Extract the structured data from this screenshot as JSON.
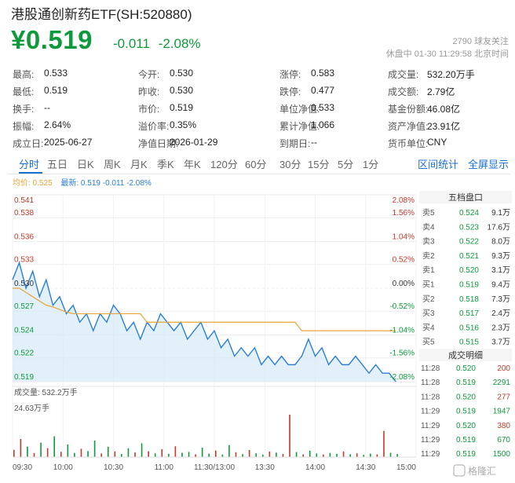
{
  "header": {
    "title": "港股通创新药ETF(SH:520880)",
    "price": "¥0.519",
    "change": "-0.011",
    "change_pct": "-2.08%",
    "followers": "2790 球友关注",
    "status": "休盘中 01-30 11:29:58 北京时间"
  },
  "stats": [
    {
      "label": "最高:",
      "value": "0.533",
      "color": "red"
    },
    {
      "label": "今开:",
      "value": "0.530",
      "color": "dark"
    },
    {
      "label": "涨停:",
      "value": "0.583",
      "color": "red"
    },
    {
      "label": "成交量:",
      "value": "532.20万手",
      "color": "dark"
    },
    {
      "label": "最低:",
      "value": "0.519",
      "color": "green"
    },
    {
      "label": "昨收:",
      "value": "0.530",
      "color": "dark"
    },
    {
      "label": "跌停:",
      "value": "0.477",
      "color": "green"
    },
    {
      "label": "成交额:",
      "value": "2.79亿",
      "color": "dark"
    },
    {
      "label": "换手:",
      "value": "--",
      "color": "dark"
    },
    {
      "label": "市价:",
      "value": "0.519",
      "color": "dark"
    },
    {
      "label": "单位净值:",
      "value": "0.533",
      "color": "dark"
    },
    {
      "label": "基金份额:",
      "value": "46.08亿",
      "color": "dark"
    },
    {
      "label": "振幅:",
      "value": "2.64%",
      "color": "dark"
    },
    {
      "label": "溢价率:",
      "value": "0.35%",
      "color": "dark"
    },
    {
      "label": "累计净值:",
      "value": "1.066",
      "color": "dark"
    },
    {
      "label": "资产净值:",
      "value": "23.91亿",
      "color": "dark"
    },
    {
      "label": "成立日:",
      "value": "2025-06-27",
      "color": "dark"
    },
    {
      "label": "净值日期:",
      "value": "2026-01-29",
      "color": "dark"
    },
    {
      "label": "到期日:",
      "value": "--",
      "color": "dark"
    },
    {
      "label": "货币单位:",
      "value": "CNY",
      "color": "dark"
    }
  ],
  "tabs": [
    "分时",
    "五日",
    "日K",
    "周K",
    "月K",
    "季K",
    "年K",
    "120分",
    "60分",
    "30分",
    "15分",
    "5分",
    "1分"
  ],
  "tab_active": "分时",
  "tabs_right": [
    "区间统计",
    "全屏显示"
  ],
  "legend": {
    "avg": "均价: 0.525",
    "latest": "最新: 0.519 -0.011 -2.08%"
  },
  "chart_data": {
    "type": "line",
    "price_ticks": [
      "0.541",
      "0.538",
      "0.536",
      "0.533",
      "0.530",
      "0.527",
      "0.524",
      "0.522",
      "0.519"
    ],
    "pct_ticks": [
      "2.08%",
      "1.56%",
      "1.04%",
      "0.52%",
      "0.00%",
      "-0.52%",
      "-1.04%",
      "-1.56%",
      "-2.08%"
    ],
    "ylim": [
      0.519,
      0.541
    ],
    "x_ticks": [
      "09:30",
      "10:00",
      "10:30",
      "11:00",
      "11:30/13:00",
      "13:30",
      "14:00",
      "14:30",
      "15:00"
    ],
    "colors": {
      "price": "#2a7fd4",
      "avg": "#e8a53a",
      "fill": "#d6e9f8",
      "up": "#c0392b",
      "down": "#0e9a3b"
    },
    "series": [
      {
        "values": [
          0.531,
          0.533,
          0.53,
          0.532,
          0.529,
          0.531,
          0.528,
          0.529,
          0.527,
          0.528,
          0.526,
          0.527,
          0.525,
          0.527,
          0.526,
          0.528,
          0.527,
          0.525,
          0.526,
          0.524,
          0.526,
          0.525,
          0.527,
          0.526,
          0.525,
          0.526,
          0.524,
          0.525,
          0.526,
          0.524,
          0.525,
          0.523,
          0.524,
          0.522,
          0.523,
          0.522,
          0.523,
          0.521,
          0.522,
          0.521,
          0.522,
          0.521,
          0.521,
          0.522,
          0.524,
          0.522,
          0.523,
          0.521,
          0.522,
          0.521,
          0.521,
          0.522,
          0.521,
          0.52,
          0.521,
          0.52,
          0.52,
          0.519
        ]
      },
      {
        "name": "均价",
        "values": [
          0.53,
          0.53,
          0.5295,
          0.529,
          0.5285,
          0.528,
          0.5278,
          0.5275,
          0.5272,
          0.527,
          0.527,
          0.527,
          0.527,
          0.527,
          0.527,
          0.527,
          0.527,
          0.527,
          0.527,
          0.527,
          0.526,
          0.526,
          0.526,
          0.526,
          0.526,
          0.526,
          0.526,
          0.526,
          0.526,
          0.526,
          0.526,
          0.526,
          0.526,
          0.526,
          0.526,
          0.526,
          0.526,
          0.526,
          0.526,
          0.526,
          0.526,
          0.526,
          0.526,
          0.525,
          0.525,
          0.525,
          0.525,
          0.525,
          0.525,
          0.525,
          0.525,
          0.525,
          0.525,
          0.525,
          0.525,
          0.525,
          0.525,
          0.525
        ]
      }
    ],
    "volume": {
      "label": "成交量: 532.2万手",
      "max_label": "24.63万手",
      "max": 24.63,
      "bars": [
        4.2,
        10.5,
        6.1,
        2.3,
        8.4,
        5.2,
        12.1,
        3.1,
        7.3,
        2.4,
        4.8,
        3.5,
        9.6,
        2.1,
        6.0,
        3.3,
        1.8,
        5.1,
        2.7,
        8.0,
        3.4,
        2.2,
        4.6,
        1.9,
        6.3,
        2.5,
        3.0,
        1.6,
        5.5,
        2.0,
        3.8,
        1.5,
        7.0,
        2.8,
        1.7,
        4.1,
        2.2,
        1.4,
        3.2,
        2.6,
        1.8,
        24.63,
        2.9,
        1.6,
        3.7,
        2.1,
        1.5,
        2.4,
        1.9,
        3.3,
        1.7,
        2.2,
        1.3,
        2.0,
        1.6,
        15.2,
        2.5,
        1.8
      ],
      "colors": [
        "red",
        "red",
        "green",
        "red",
        "green",
        "red",
        "green",
        "red",
        "green",
        "green",
        "red",
        "green",
        "green",
        "red",
        "green",
        "red",
        "green",
        "green",
        "red",
        "green",
        "red",
        "green",
        "red",
        "green",
        "red",
        "green",
        "green",
        "red",
        "green",
        "green",
        "red",
        "green",
        "green",
        "red",
        "green",
        "red",
        "green",
        "green",
        "red",
        "green",
        "red",
        "red",
        "green",
        "red",
        "green",
        "green",
        "red",
        "green",
        "green",
        "red",
        "green",
        "red",
        "green",
        "green",
        "red",
        "red",
        "green",
        "green"
      ]
    }
  },
  "order_book": {
    "title": "五档盘口",
    "rows": [
      {
        "label": "卖5",
        "price": "0.524",
        "vol": "9.1万"
      },
      {
        "label": "卖4",
        "price": "0.523",
        "vol": "17.6万"
      },
      {
        "label": "卖3",
        "price": "0.522",
        "vol": "8.0万"
      },
      {
        "label": "卖2",
        "price": "0.521",
        "vol": "9.3万"
      },
      {
        "label": "卖1",
        "price": "0.520",
        "vol": "3.1万"
      },
      {
        "label": "买1",
        "price": "0.519",
        "vol": "9.4万"
      },
      {
        "label": "买2",
        "price": "0.518",
        "vol": "7.3万"
      },
      {
        "label": "买3",
        "price": "0.517",
        "vol": "2.4万"
      },
      {
        "label": "买4",
        "price": "0.516",
        "vol": "2.3万"
      },
      {
        "label": "买5",
        "price": "0.515",
        "vol": "3.7万"
      }
    ]
  },
  "trades": {
    "title": "成交明细",
    "rows": [
      {
        "time": "11:28",
        "price": "0.520",
        "vol": "200",
        "dir": "red"
      },
      {
        "time": "11:28",
        "price": "0.519",
        "vol": "2291",
        "dir": "green"
      },
      {
        "time": "11:28",
        "price": "0.520",
        "vol": "277",
        "dir": "red"
      },
      {
        "time": "11:29",
        "price": "0.519",
        "vol": "1947",
        "dir": "green"
      },
      {
        "time": "11:29",
        "price": "0.520",
        "vol": "380",
        "dir": "red"
      },
      {
        "time": "11:29",
        "price": "0.519",
        "vol": "670",
        "dir": "green"
      },
      {
        "time": "11:29",
        "price": "0.519",
        "vol": "1500",
        "dir": "green"
      }
    ]
  },
  "watermark": "格隆汇"
}
